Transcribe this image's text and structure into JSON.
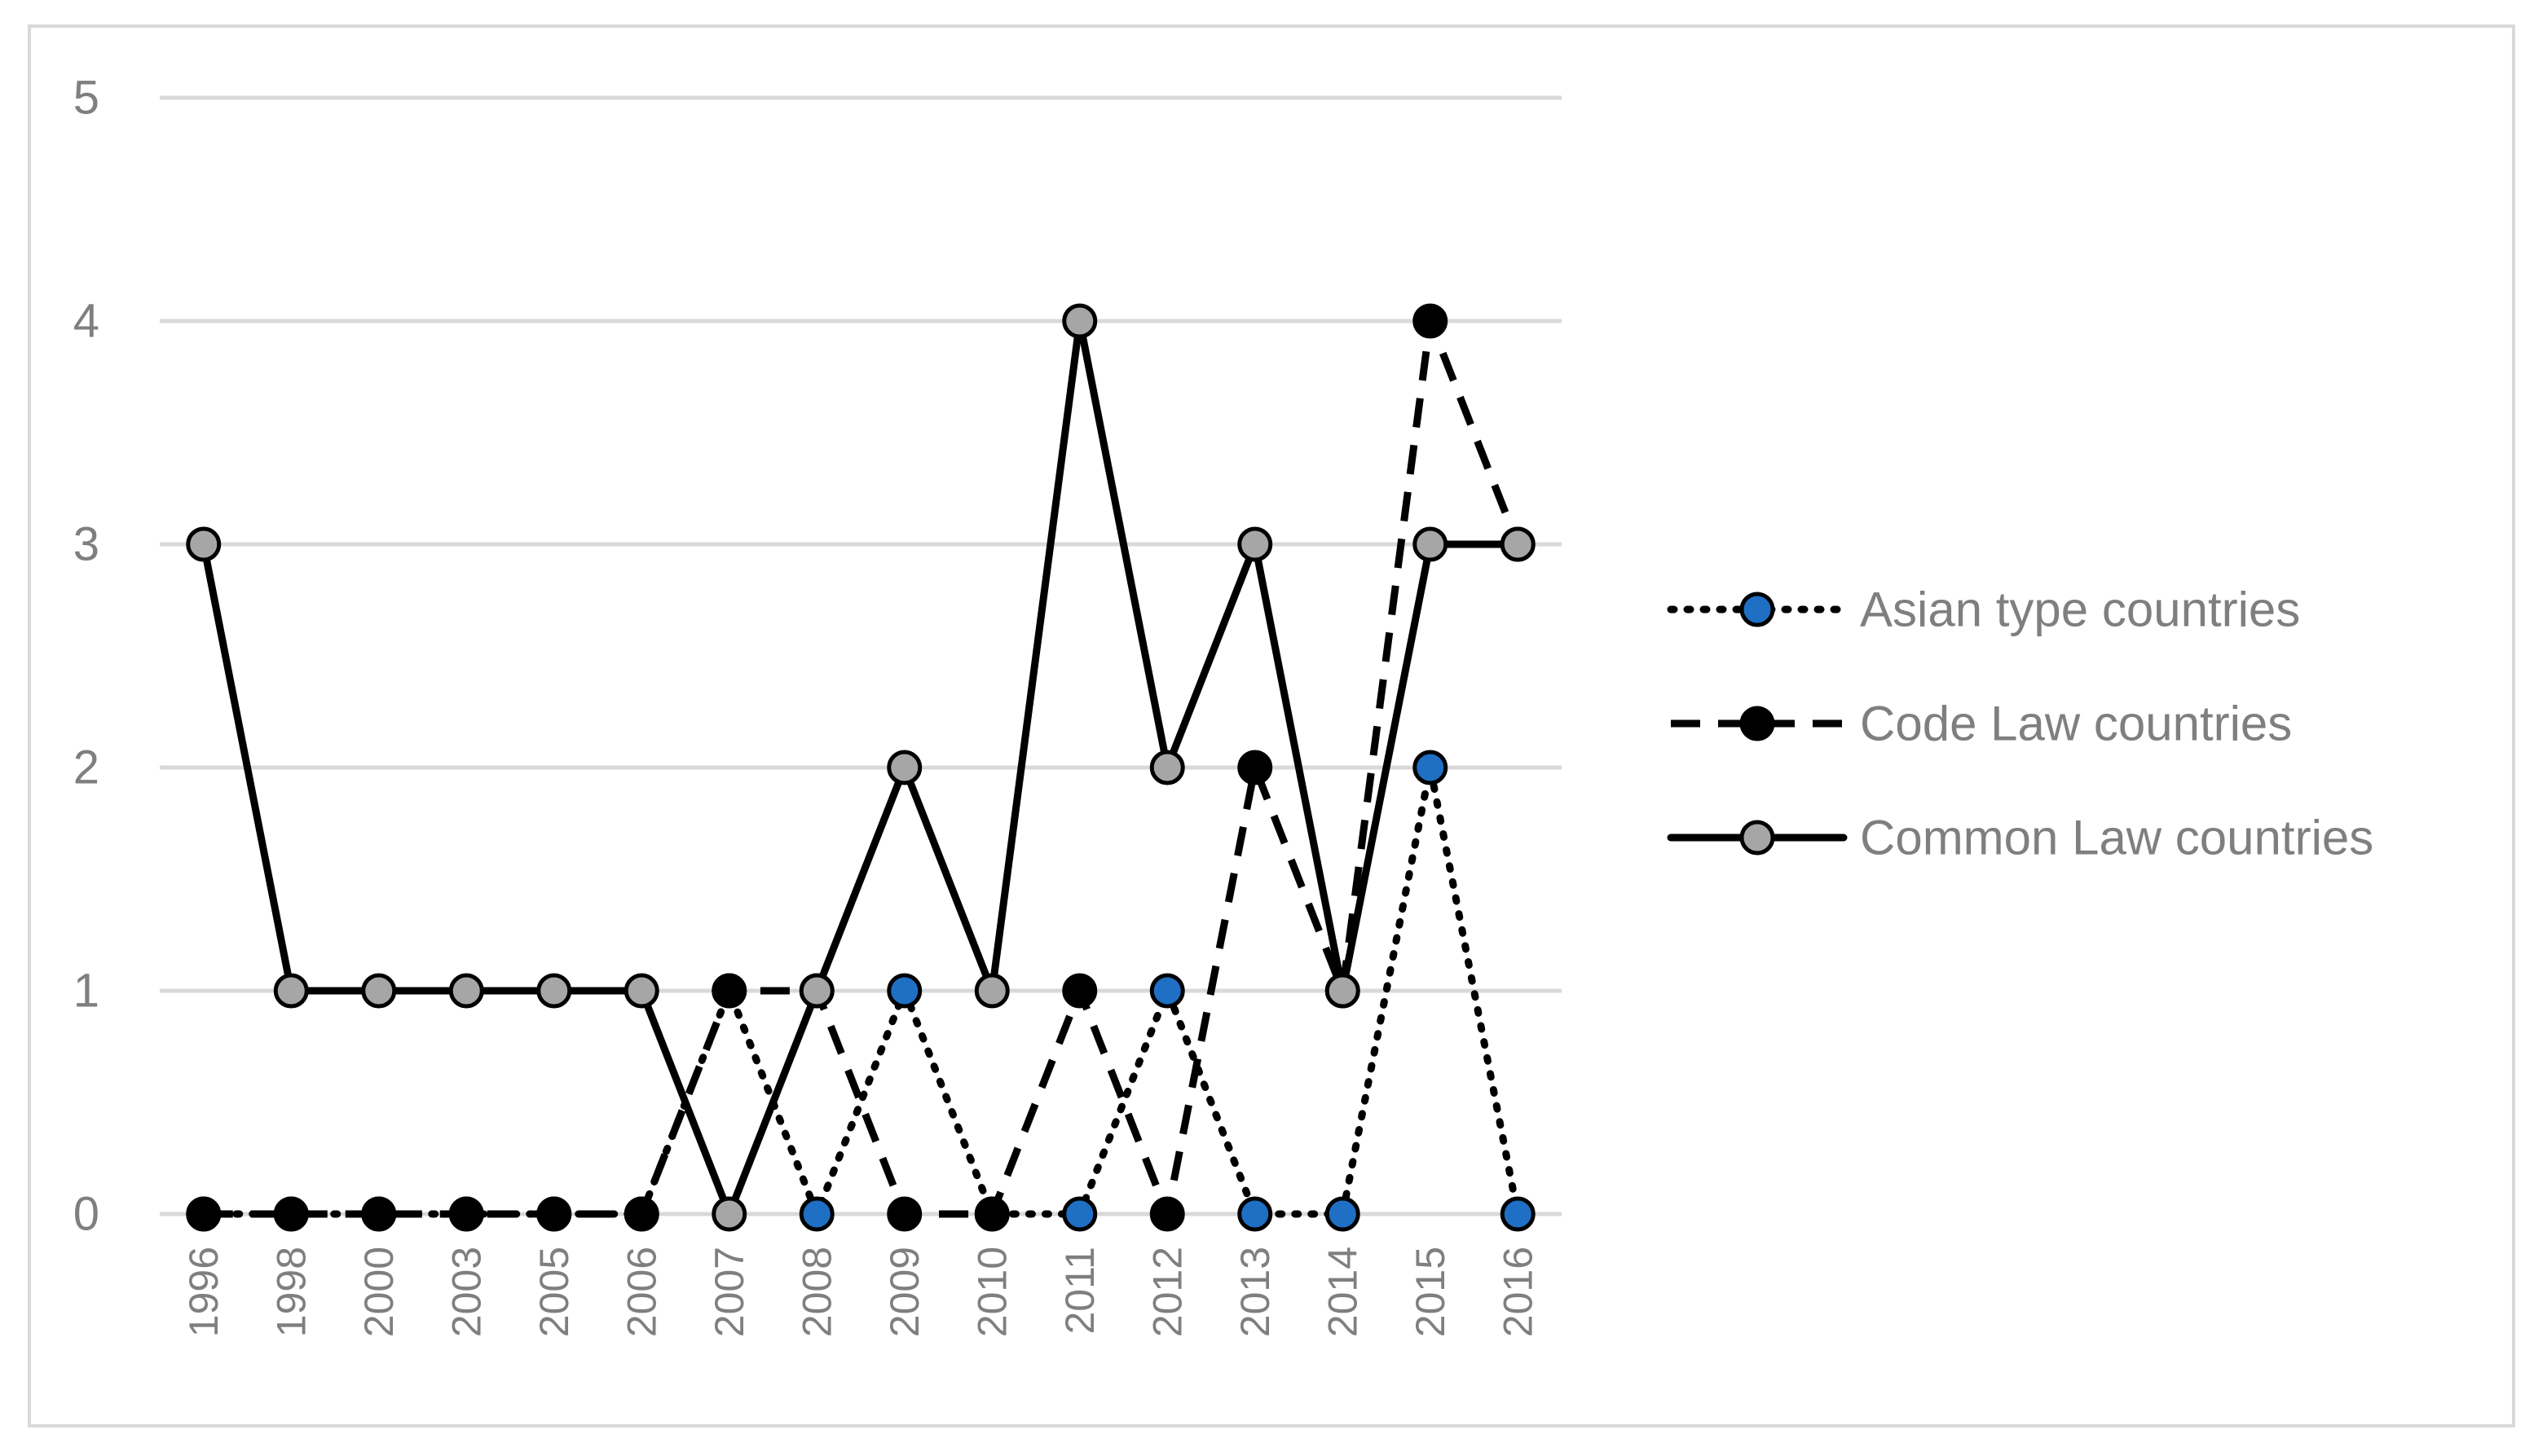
{
  "chart_data": {
    "type": "line",
    "title": "",
    "xlabel": "",
    "ylabel": "",
    "ylim": [
      0,
      5
    ],
    "yticks": [
      "0",
      "1",
      "2",
      "3",
      "4",
      "5"
    ],
    "grid": true,
    "legend_position": "right",
    "categories": [
      "1996",
      "1998",
      "2000",
      "2003",
      "2005",
      "2006",
      "2007",
      "2008",
      "2009",
      "2010",
      "2011",
      "2012",
      "2013",
      "2014",
      "2015",
      "2016"
    ],
    "series": [
      {
        "name": "Asian type countries",
        "values": [
          0,
          0,
          0,
          0,
          0,
          0,
          1,
          0,
          1,
          0,
          0,
          1,
          0,
          0,
          2,
          0
        ],
        "line_style": "dotted",
        "line_color": "#000000",
        "marker_fill": "#1f6fc5"
      },
      {
        "name": "Code Law countries",
        "values": [
          0,
          0,
          0,
          0,
          0,
          0,
          1,
          1,
          0,
          0,
          1,
          0,
          2,
          1,
          4,
          3
        ],
        "line_style": "dashed",
        "line_color": "#000000",
        "marker_fill": "#000000"
      },
      {
        "name": "Common Law countries",
        "values": [
          3,
          1,
          1,
          1,
          1,
          1,
          0,
          1,
          2,
          1,
          4,
          2,
          3,
          1,
          3,
          3
        ],
        "line_style": "solid",
        "line_color": "#000000",
        "marker_fill": "#a6a6a6"
      }
    ],
    "colors": {
      "gridline": "#d9d9d9",
      "tick_text": "#7f7f7f",
      "frame": "#d9d9d9"
    }
  }
}
